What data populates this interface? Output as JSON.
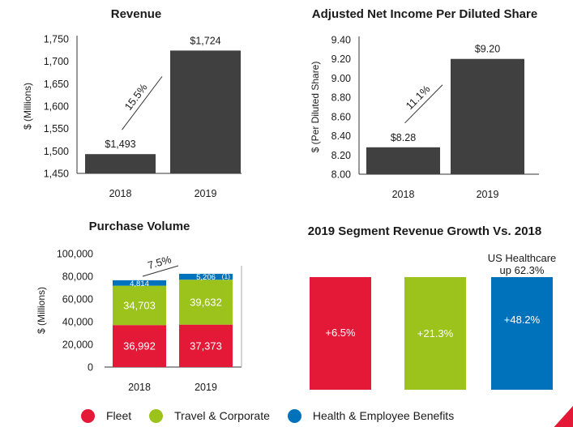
{
  "colors": {
    "bar": "#404040",
    "fleet": "#e31937",
    "travel": "#9bc31c",
    "health": "#0072bc"
  },
  "chart_data": [
    {
      "type": "bar",
      "title": "Revenue",
      "ylabel": "$ (Millions)",
      "categories": [
        "2018",
        "2019"
      ],
      "values": [
        1493,
        1724
      ],
      "value_labels": [
        "$1,493",
        "$1,724"
      ],
      "ylim": [
        1450,
        1750
      ],
      "yticks": [
        "1,450",
        "1,500",
        "1,550",
        "1,600",
        "1,650",
        "1,700",
        "1,750"
      ],
      "growth": "15.5%"
    },
    {
      "type": "bar",
      "title": "Adjusted Net Income Per Diluted Share",
      "ylabel": "$ (Per Diluted Share)",
      "categories": [
        "2018",
        "2019"
      ],
      "values": [
        8.28,
        9.2
      ],
      "value_labels": [
        "$8.28",
        "$9.20"
      ],
      "ylim": [
        8.0,
        9.4
      ],
      "yticks": [
        "8.00",
        "8.20",
        "8.40",
        "8.60",
        "8.80",
        "9.00",
        "9.20",
        "9.40"
      ],
      "growth": "11.1%"
    },
    {
      "type": "bar",
      "stacked": true,
      "title": "Purchase Volume",
      "ylabel": "$ (Millions)",
      "categories": [
        "2018",
        "2019"
      ],
      "ylim": [
        0,
        100000
      ],
      "yticks": [
        "0",
        "20,000",
        "40,000",
        "60,000",
        "80,000",
        "100,000"
      ],
      "growth": "7.5%",
      "series": [
        {
          "name": "Fleet",
          "values": [
            36992,
            37373
          ],
          "labels": [
            "36,992",
            "37,373"
          ]
        },
        {
          "name": "Travel & Corporate",
          "values": [
            34703,
            39632
          ],
          "labels": [
            "34,703",
            "39,632"
          ]
        },
        {
          "name": "Health & Employee Benefits",
          "values": [
            4814,
            5206
          ],
          "labels": [
            "4,814",
            "5,206"
          ]
        }
      ],
      "footnote_marker": "(1)"
    },
    {
      "type": "bar",
      "title": "2019 Segment Revenue Growth Vs. 2018",
      "categories": [
        "Fleet",
        "Travel & Corporate",
        "Health & Employee Benefits"
      ],
      "values": [
        6.5,
        21.3,
        48.2
      ],
      "value_labels": [
        "+6.5%",
        "+21.3%",
        "+48.2%"
      ],
      "annotation": [
        "US Healthcare",
        "up 62.3%"
      ]
    }
  ],
  "legend": [
    {
      "label": "Fleet",
      "color": "#e31937"
    },
    {
      "label": "Travel & Corporate",
      "color": "#9bc31c"
    },
    {
      "label": "Health & Employee Benefits",
      "color": "#0072bc"
    }
  ]
}
